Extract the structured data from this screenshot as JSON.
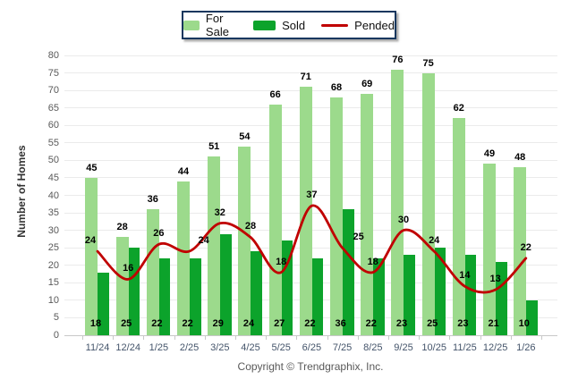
{
  "chart_data": {
    "type": "bar",
    "categories": [
      "11/24",
      "12/24",
      "1/25",
      "2/25",
      "3/25",
      "4/25",
      "5/25",
      "6/25",
      "7/25",
      "8/25",
      "9/25",
      "10/25",
      "11/25",
      "12/25",
      "1/26"
    ],
    "series": [
      {
        "name": "For Sale",
        "type": "bar",
        "color": "#9CDA8C",
        "values": [
          45,
          28,
          36,
          44,
          51,
          54,
          66,
          71,
          68,
          69,
          76,
          75,
          62,
          49,
          48
        ]
      },
      {
        "name": "Sold",
        "type": "bar",
        "color": "#0CA32B",
        "values": [
          18,
          25,
          22,
          22,
          29,
          24,
          27,
          22,
          36,
          22,
          23,
          25,
          23,
          21,
          10
        ]
      },
      {
        "name": "Pended",
        "type": "line",
        "color": "#C00000",
        "values": [
          24,
          16,
          26,
          24,
          32,
          28,
          18,
          37,
          25,
          18,
          30,
          24,
          14,
          13,
          22
        ]
      }
    ],
    "xlabel": "",
    "ylabel": "Number of Homes",
    "ylim": [
      0,
      80
    ],
    "ytick_step": 5,
    "yticks": [
      0,
      5,
      10,
      15,
      20,
      25,
      30,
      35,
      40,
      45,
      50,
      55,
      60,
      65,
      70,
      75,
      80
    ],
    "grid": true,
    "legend_position": "top"
  },
  "footer": {
    "copyright": "Copyright © Trendgraphix, Inc."
  }
}
